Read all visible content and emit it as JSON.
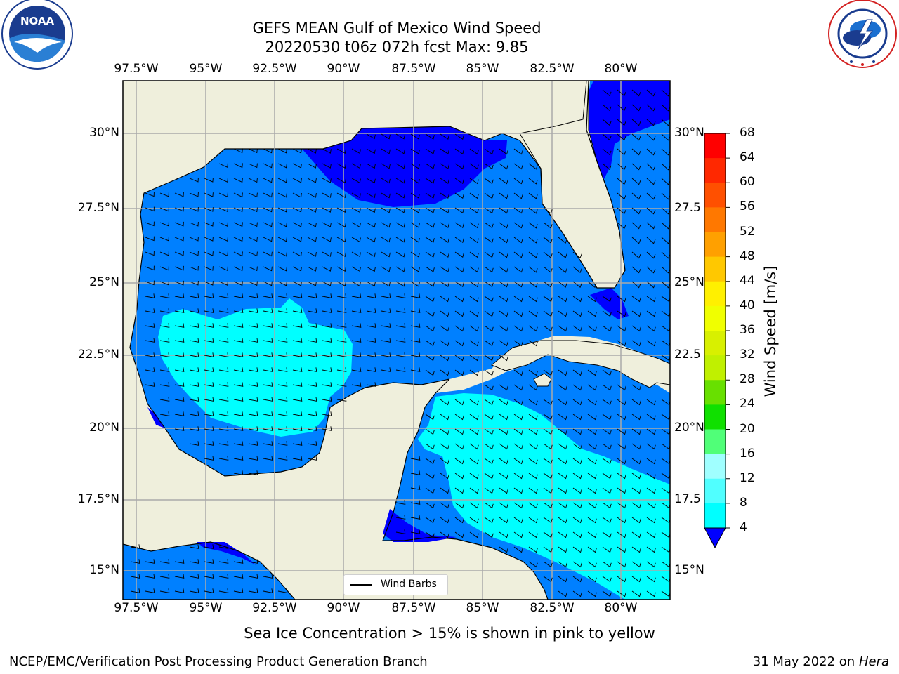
{
  "title_line1": "GEFS MEAN Gulf of Mexico Wind Speed",
  "title_line2": "20220530 t06z 072h fcst   Max: 9.85",
  "lon_labels": [
    "97.5°W",
    "95°W",
    "92.5°W",
    "90°W",
    "87.5°W",
    "85°W",
    "82.5°W",
    "80°W"
  ],
  "lat_labels": [
    "30°N",
    "27.5°N",
    "25°N",
    "22.5°N",
    "20°N",
    "17.5°N",
    "15°N"
  ],
  "lat_labels_right": [
    "30°N",
    "27.5",
    "25°N",
    "22.5",
    "20°N",
    "17.5",
    "15°N"
  ],
  "colorbar": {
    "title": "Wind Speed [m/s]",
    "ticks": [
      "68",
      "64",
      "60",
      "56",
      "52",
      "48",
      "44",
      "40",
      "36",
      "32",
      "28",
      "24",
      "20",
      "16",
      "12",
      "8",
      "4"
    ],
    "colors": [
      "#ff0000",
      "#ff2800",
      "#ff5000",
      "#ff7800",
      "#ffa000",
      "#ffc800",
      "#fff000",
      "#f0ff00",
      "#d8f000",
      "#c0f000",
      "#68e000",
      "#10e000",
      "#50ff78",
      "#a0ffff",
      "#50ffff",
      "#00ffff",
      "#0080ff"
    ],
    "under_color": "#0000ff"
  },
  "legend_label": "Wind Barbs",
  "note": "Sea Ice Concentration > 15% is shown in pink to yellow",
  "footer_left": "NCEP/EMC/Verification Post Processing Product Generation Branch",
  "footer_right_date": "31 May 2022 on",
  "footer_right_host": "Hera",
  "logos": {
    "left": "NOAA",
    "left_ring_text": "NATIONAL OCEANIC AND ATMOSPHERIC ADMINISTRATION · U.S. DEPARTMENT OF COMMERCE",
    "right_ring_text": "NATIONAL WEATHER SERVICE"
  },
  "map": {
    "lon_range": [
      -98.5,
      -78.75
    ],
    "lat_range": [
      14,
      31.6
    ],
    "land_color": "#efefdc",
    "wind_bands": {
      "0-4": "#0000ff",
      "4-8": "#0080ff",
      "8-12": "#00ffff"
    }
  }
}
